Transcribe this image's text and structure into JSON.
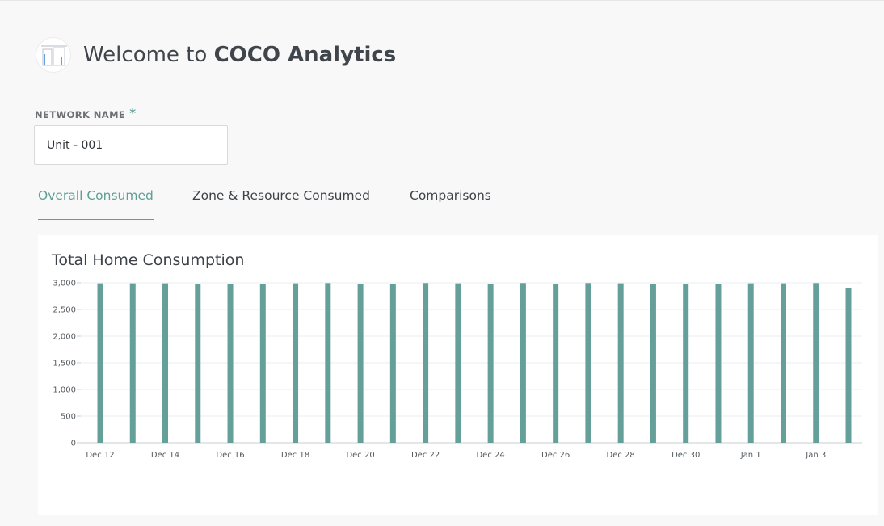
{
  "header": {
    "welcome_prefix": "Welcome to ",
    "app_name": "COCO Analytics"
  },
  "network": {
    "label": "NETWORK NAME",
    "required_mark": "*",
    "value": "Unit - 001"
  },
  "tabs": [
    {
      "label": "Overall Consumed",
      "active": true
    },
    {
      "label": "Zone & Resource Consumed",
      "active": false
    },
    {
      "label": "Comparisons",
      "active": false
    }
  ],
  "colors": {
    "accent": "#5f9f97",
    "bar": "#649f99",
    "background": "#f8f8f8"
  },
  "chart_data": {
    "type": "bar",
    "title": "Total Home Consumption",
    "categories": [
      "Dec 12",
      "Dec 13",
      "Dec 14",
      "Dec 15",
      "Dec 16",
      "Dec 17",
      "Dec 18",
      "Dec 19",
      "Dec 20",
      "Dec 21",
      "Dec 22",
      "Dec 23",
      "Dec 24",
      "Dec 25",
      "Dec 26",
      "Dec 27",
      "Dec 28",
      "Dec 29",
      "Dec 30",
      "Dec 31",
      "Jan 1",
      "Jan 2",
      "Jan 3",
      "Jan 4"
    ],
    "x_tick_labels": [
      "Dec 12",
      "Dec 14",
      "Dec 16",
      "Dec 18",
      "Dec 20",
      "Dec 22",
      "Dec 24",
      "Dec 26",
      "Dec 28",
      "Dec 30",
      "Jan 1",
      "Jan 3"
    ],
    "values": [
      2990,
      2990,
      2990,
      2980,
      2985,
      2975,
      2990,
      2995,
      2970,
      2985,
      2995,
      2990,
      2980,
      2995,
      2985,
      2995,
      2990,
      2980,
      2985,
      2980,
      2990,
      2990,
      2995,
      2900
    ],
    "y_ticks": [
      "0",
      "500",
      "1,000",
      "1,500",
      "2,000",
      "2,500",
      "3,000"
    ],
    "ylim": [
      0,
      3000
    ],
    "grid": true,
    "xlabel": "",
    "ylabel": ""
  }
}
